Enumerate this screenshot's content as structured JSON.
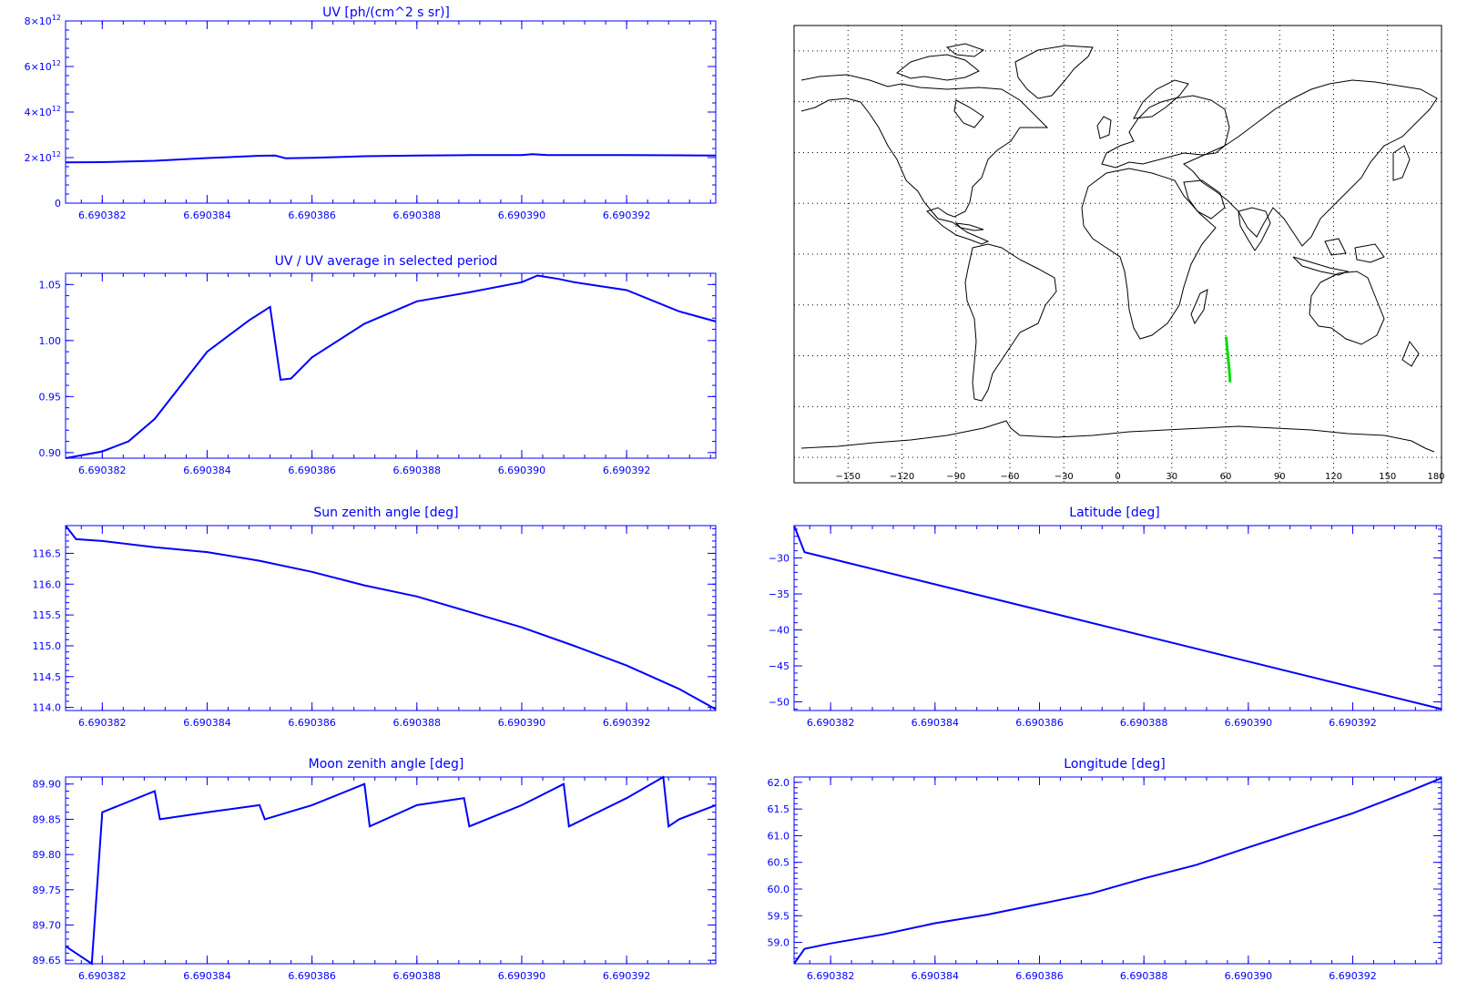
{
  "colors": {
    "axis": "#0000ff",
    "line": "#0000ff",
    "map": "#000000",
    "track": "#00dd00",
    "grid": "#000000"
  },
  "map": {
    "lon_ticks": [
      -150,
      -120,
      -90,
      -60,
      -30,
      0,
      30,
      60,
      90,
      120,
      150,
      180
    ],
    "lon_range": [
      -180,
      180
    ],
    "lat_range": [
      -90,
      90
    ],
    "grid": "dotted every 30 deg lon, every 20 deg lat",
    "track": [
      [
        60.2,
        -32.5
      ],
      [
        60.8,
        -37.0
      ],
      [
        61.4,
        -41.5
      ],
      [
        62.0,
        -46.0
      ],
      [
        62.5,
        -50.5
      ]
    ]
  },
  "chart_data": [
    {
      "id": "uv",
      "type": "line",
      "title": "UV [ph/(cm^2 s sr)]",
      "xlim": [
        6.6903813,
        6.6903937
      ],
      "ylim": [
        0,
        8000000000000.0
      ],
      "x_ticks": [
        6.690382,
        6.690384,
        6.690386,
        6.690388,
        6.69039,
        6.690392
      ],
      "y_ticks": [
        0,
        2000000000000.0,
        4000000000000.0,
        6000000000000.0,
        8000000000000.0
      ],
      "y_tick_mantissa": [
        "0",
        "2×10",
        "4×10",
        "6×10",
        "8×10"
      ],
      "y_tick_exponent": [
        "",
        "12",
        "12",
        "12",
        "12"
      ],
      "x": [
        6.6903813,
        6.690382,
        6.690383,
        6.690384,
        6.6903845,
        6.690385,
        6.6903853,
        6.6903855,
        6.690386,
        6.690387,
        6.690388,
        6.690389,
        6.69039,
        6.6903902,
        6.6903905,
        6.690391,
        6.690392,
        6.690393,
        6.6903937
      ],
      "y": [
        1790000000000.0,
        1800000000000.0,
        1860000000000.0,
        1980000000000.0,
        2030000000000.0,
        2080000000000.0,
        2090000000000.0,
        1970000000000.0,
        1990000000000.0,
        2060000000000.0,
        2090000000000.0,
        2110000000000.0,
        2110000000000.0,
        2150000000000.0,
        2110000000000.0,
        2110000000000.0,
        2110000000000.0,
        2100000000000.0,
        2090000000000.0
      ]
    },
    {
      "id": "uvratio",
      "type": "line",
      "title": "UV / UV average in selected period",
      "xlim": [
        6.6903813,
        6.6903937
      ],
      "ylim": [
        0.895,
        1.06
      ],
      "x_ticks": [
        6.690382,
        6.690384,
        6.690386,
        6.690388,
        6.69039,
        6.690392
      ],
      "y_ticks": [
        0.9,
        0.95,
        1.0,
        1.05
      ],
      "y_tick_labels": [
        "0.90",
        "0.95",
        "1.00",
        "1.05"
      ],
      "x": [
        6.6903813,
        6.690382,
        6.6903825,
        6.690383,
        6.690384,
        6.6903848,
        6.6903852,
        6.6903854,
        6.6903856,
        6.690386,
        6.690387,
        6.690388,
        6.690389,
        6.69039,
        6.6903903,
        6.6903907,
        6.690391,
        6.690392,
        6.690393,
        6.6903937
      ],
      "y": [
        0.895,
        0.901,
        0.91,
        0.93,
        0.99,
        1.018,
        1.03,
        0.965,
        0.966,
        0.985,
        1.015,
        1.035,
        1.043,
        1.052,
        1.058,
        1.055,
        1.052,
        1.045,
        1.026,
        1.017
      ]
    },
    {
      "id": "sza",
      "type": "line",
      "title": "Sun zenith angle [deg]",
      "xlim": [
        6.6903813,
        6.6903937
      ],
      "ylim": [
        113.95,
        116.95
      ],
      "x_ticks": [
        6.690382,
        6.690384,
        6.690386,
        6.690388,
        6.69039,
        6.690392
      ],
      "y_ticks": [
        114.0,
        114.5,
        115.0,
        115.5,
        116.0,
        116.5
      ],
      "y_tick_labels": [
        "114.0",
        "114.5",
        "115.0",
        "115.5",
        "116.0",
        "116.5"
      ],
      "x": [
        6.6903813,
        6.6903815,
        6.690382,
        6.690383,
        6.690384,
        6.690385,
        6.690386,
        6.690387,
        6.690388,
        6.690389,
        6.69039,
        6.690391,
        6.690392,
        6.690393,
        6.6903937
      ],
      "y": [
        116.95,
        116.73,
        116.7,
        116.6,
        116.52,
        116.38,
        116.2,
        115.98,
        115.8,
        115.55,
        115.3,
        115.0,
        114.68,
        114.3,
        113.97
      ]
    },
    {
      "id": "lat",
      "type": "line",
      "title": "Latitude [deg]",
      "xlim": [
        6.6903813,
        6.6903937
      ],
      "ylim": [
        -51.2,
        -25.5
      ],
      "x_ticks": [
        6.690382,
        6.690384,
        6.690386,
        6.690388,
        6.69039,
        6.690392
      ],
      "y_ticks": [
        -50,
        -45,
        -40,
        -35,
        -30
      ],
      "y_tick_labels": [
        "−50",
        "−45",
        "−40",
        "−35",
        "−30"
      ],
      "x": [
        6.6903813,
        6.6903815,
        6.6903937
      ],
      "y": [
        -25.5,
        -29.2,
        -51.0
      ]
    },
    {
      "id": "mza",
      "type": "line",
      "title": "Moon zenith angle [deg]",
      "xlim": [
        6.6903813,
        6.6903937
      ],
      "ylim": [
        89.645,
        89.91
      ],
      "x_ticks": [
        6.690382,
        6.690384,
        6.690386,
        6.690388,
        6.69039,
        6.690392
      ],
      "y_ticks": [
        89.65,
        89.7,
        89.75,
        89.8,
        89.85,
        89.9
      ],
      "y_tick_labels": [
        "89.65",
        "89.70",
        "89.75",
        "89.80",
        "89.85",
        "89.90"
      ],
      "x": [
        6.6903813,
        6.6903815,
        6.6903818,
        6.690382,
        6.690383,
        6.6903831,
        6.690384,
        6.690385,
        6.6903851,
        6.690386,
        6.690387,
        6.6903871,
        6.690388,
        6.6903889,
        6.690389,
        6.69039,
        6.6903908,
        6.6903909,
        6.690392,
        6.6903927,
        6.6903928,
        6.690393,
        6.6903937
      ],
      "y": [
        89.67,
        89.66,
        89.645,
        89.86,
        89.89,
        89.85,
        89.86,
        89.87,
        89.85,
        89.87,
        89.9,
        89.84,
        89.87,
        89.88,
        89.84,
        89.87,
        89.9,
        89.84,
        89.88,
        89.91,
        89.84,
        89.85,
        89.87
      ]
    },
    {
      "id": "lon",
      "type": "line",
      "title": "Longitude [deg]",
      "xlim": [
        6.6903813,
        6.6903937
      ],
      "ylim": [
        58.6,
        62.1
      ],
      "x_ticks": [
        6.690382,
        6.690384,
        6.690386,
        6.690388,
        6.69039,
        6.690392
      ],
      "y_ticks": [
        59.0,
        59.5,
        60.0,
        60.5,
        61.0,
        61.5,
        62.0
      ],
      "y_tick_labels": [
        "59.0",
        "59.5",
        "60.0",
        "60.5",
        "61.0",
        "61.5",
        "62.0"
      ],
      "x": [
        6.6903813,
        6.6903815,
        6.690382,
        6.690383,
        6.690384,
        6.690385,
        6.690386,
        6.690387,
        6.690388,
        6.690389,
        6.69039,
        6.690391,
        6.690392,
        6.690393,
        6.6903937
      ],
      "y": [
        58.6,
        58.88,
        58.98,
        59.15,
        59.36,
        59.52,
        59.72,
        59.92,
        60.2,
        60.45,
        60.78,
        61.1,
        61.42,
        61.8,
        62.08
      ]
    }
  ],
  "x_tick_labels": [
    "6.690382",
    "6.690384",
    "6.690386",
    "6.690388",
    "6.690390",
    "6.690392"
  ]
}
